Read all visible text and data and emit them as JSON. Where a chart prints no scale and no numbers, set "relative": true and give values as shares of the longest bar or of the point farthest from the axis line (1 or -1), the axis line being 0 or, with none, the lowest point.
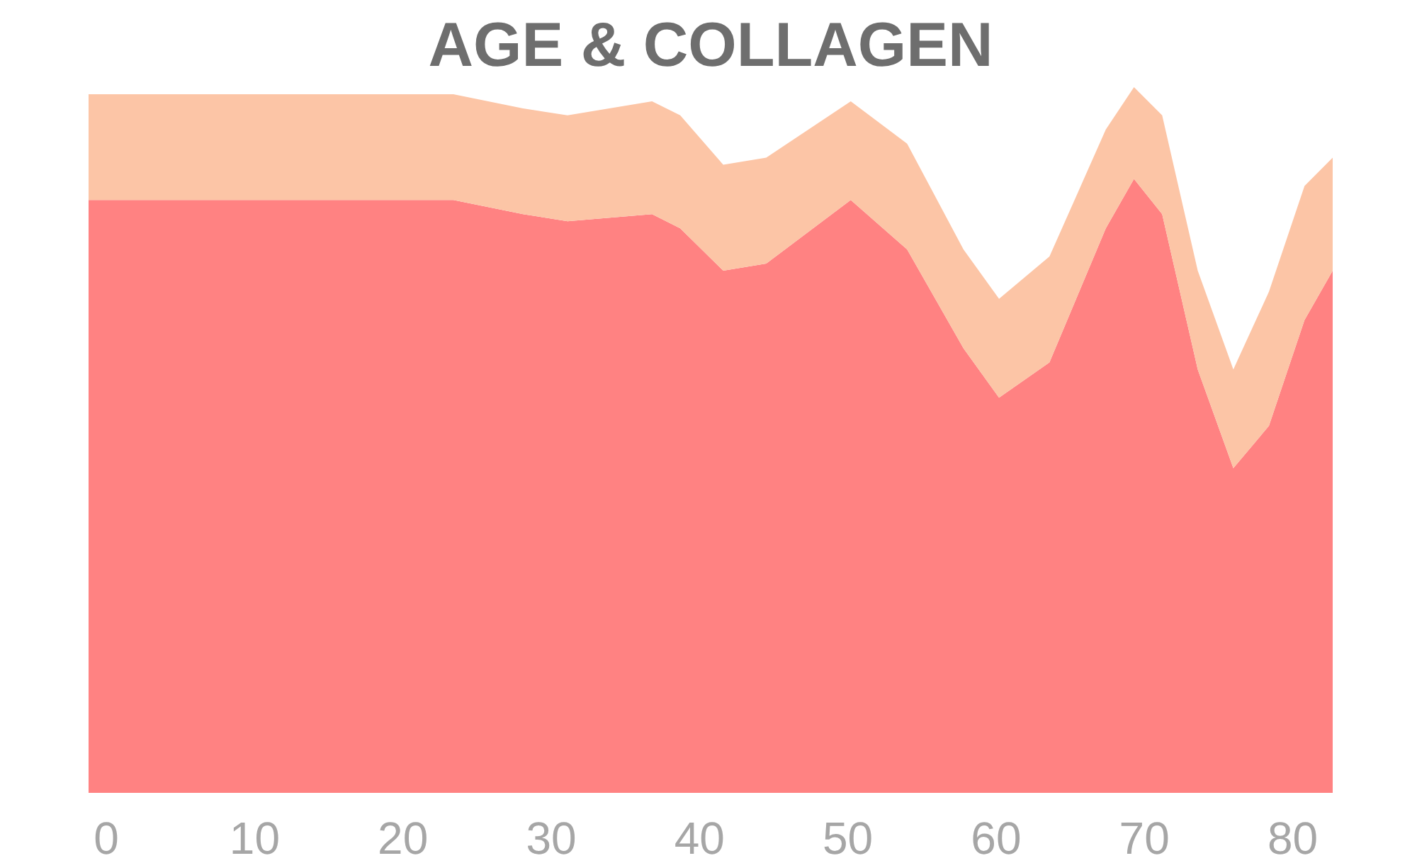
{
  "chart_data": {
    "type": "area",
    "title": "AGE & COLLAGEN",
    "relative": true,
    "stacked": true,
    "x": [
      -1.2,
      7.2,
      23.4,
      28.1,
      31.1,
      36.8,
      38.7,
      41.6,
      44.5,
      50.2,
      54.0,
      57.8,
      60.2,
      63.6,
      67.4,
      69.3,
      71.2,
      73.6,
      76.0,
      78.4,
      80.8,
      82.7
    ],
    "xlim": [
      -1.2,
      82.7
    ],
    "xticks": [
      0,
      10,
      20,
      30,
      40,
      50,
      60,
      70,
      80
    ],
    "series": [
      {
        "color": "#ff8282",
        "values": [
          0.84,
          0.84,
          0.84,
          0.82,
          0.81,
          0.82,
          0.8,
          0.74,
          0.75,
          0.84,
          0.77,
          0.63,
          0.56,
          0.61,
          0.8,
          0.87,
          0.82,
          0.6,
          0.46,
          0.52,
          0.67,
          0.74
        ]
      },
      {
        "color": "#fcc5a6",
        "values": [
          0.15,
          0.15,
          0.15,
          0.15,
          0.15,
          0.16,
          0.16,
          0.15,
          0.15,
          0.14,
          0.15,
          0.14,
          0.14,
          0.15,
          0.14,
          0.13,
          0.14,
          0.14,
          0.14,
          0.19,
          0.19,
          0.16
        ]
      }
    ]
  }
}
